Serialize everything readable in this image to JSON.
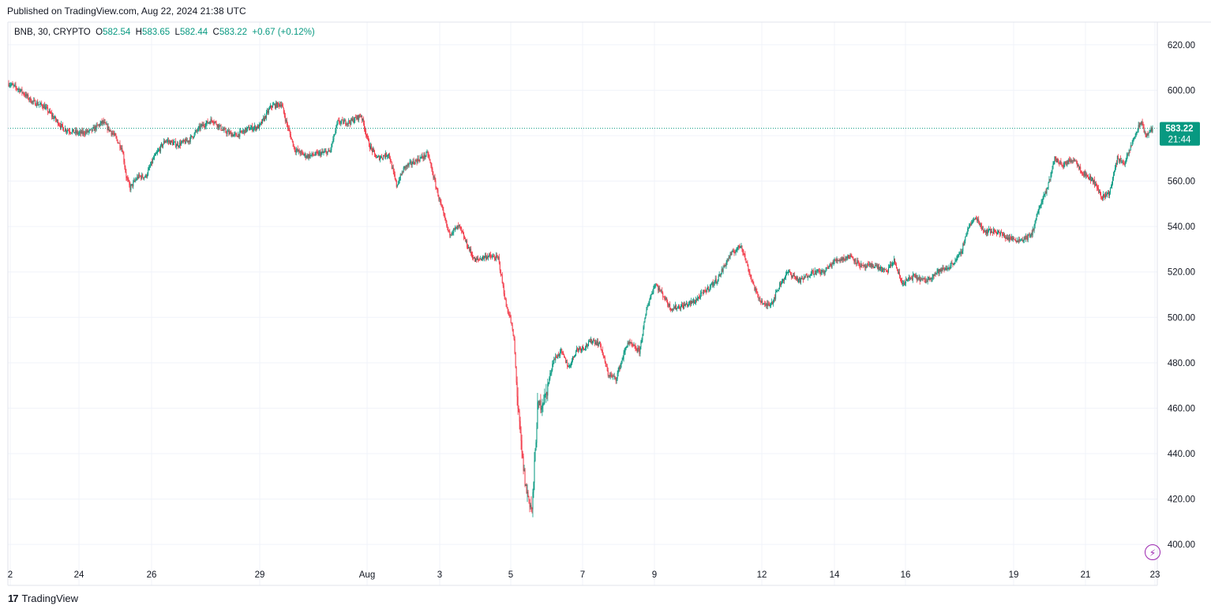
{
  "header": {
    "published": "Published on TradingView.com, Aug 22, 2024 21:38 UTC"
  },
  "legend": {
    "symbol": "BNB, 30, CRYPTO",
    "o_label": "O",
    "o_value": "582.54",
    "h_label": "H",
    "h_value": "583.65",
    "l_label": "L",
    "l_value": "582.44",
    "c_label": "C",
    "c_value": "583.22",
    "change": "+0.67 (+0.12%)"
  },
  "price_badge": {
    "price": "583.22",
    "countdown": "21:44"
  },
  "brand": {
    "logo": "17",
    "name": "TradingView"
  },
  "colors": {
    "up": "#089981",
    "down": "#f23645",
    "grid": "#f0f3fa",
    "current_badge": "#089981",
    "lightning": "#9c27b0"
  },
  "icons": {
    "lightning": "lightning-icon",
    "logo": "tradingview-logo-icon"
  },
  "chart_data": {
    "type": "candlestick",
    "ylim": [
      382,
      630
    ],
    "y_ticks": [
      "620.00",
      "600.00",
      "580.00",
      "560.00",
      "540.00",
      "520.00",
      "500.00",
      "480.00",
      "460.00",
      "440.00",
      "420.00",
      "400.00"
    ],
    "x_ticks": [
      "2",
      "24",
      "26",
      "29",
      "Aug",
      "3",
      "5",
      "7",
      "9",
      "12",
      "14",
      "16",
      "19",
      "21",
      "23"
    ],
    "current_price": 583.22,
    "path": [
      [
        0,
        603
      ],
      [
        15,
        600
      ],
      [
        30,
        595
      ],
      [
        45,
        593
      ],
      [
        60,
        587
      ],
      [
        70,
        583
      ],
      [
        90,
        581
      ],
      [
        105,
        582
      ],
      [
        120,
        586
      ],
      [
        135,
        580
      ],
      [
        145,
        574
      ],
      [
        150,
        562
      ],
      [
        155,
        557
      ],
      [
        165,
        562
      ],
      [
        175,
        562
      ],
      [
        185,
        570
      ],
      [
        200,
        578
      ],
      [
        215,
        576
      ],
      [
        230,
        578
      ],
      [
        245,
        584
      ],
      [
        260,
        587
      ],
      [
        275,
        582
      ],
      [
        290,
        580
      ],
      [
        305,
        583
      ],
      [
        320,
        584
      ],
      [
        335,
        593
      ],
      [
        348,
        594
      ],
      [
        355,
        585
      ],
      [
        365,
        574
      ],
      [
        380,
        571
      ],
      [
        395,
        572
      ],
      [
        410,
        573
      ],
      [
        420,
        586
      ],
      [
        435,
        586
      ],
      [
        450,
        589
      ],
      [
        460,
        576
      ],
      [
        470,
        570
      ],
      [
        485,
        572
      ],
      [
        495,
        558
      ],
      [
        505,
        566
      ],
      [
        515,
        568
      ],
      [
        525,
        570
      ],
      [
        535,
        572
      ],
      [
        545,
        558
      ],
      [
        555,
        545
      ],
      [
        562,
        537
      ],
      [
        575,
        540
      ],
      [
        585,
        532
      ],
      [
        595,
        525
      ],
      [
        610,
        527
      ],
      [
        625,
        526
      ],
      [
        635,
        505
      ],
      [
        640,
        500
      ],
      [
        645,
        490
      ],
      [
        650,
        460
      ],
      [
        655,
        440
      ],
      [
        660,
        425
      ],
      [
        668,
        415
      ],
      [
        675,
        460
      ],
      [
        685,
        465
      ],
      [
        695,
        481
      ],
      [
        705,
        485
      ],
      [
        715,
        478
      ],
      [
        725,
        486
      ],
      [
        735,
        487
      ],
      [
        745,
        490
      ],
      [
        755,
        488
      ],
      [
        765,
        475
      ],
      [
        775,
        473
      ],
      [
        790,
        489
      ],
      [
        805,
        485
      ],
      [
        815,
        505
      ],
      [
        825,
        515
      ],
      [
        835,
        510
      ],
      [
        845,
        504
      ],
      [
        860,
        505
      ],
      [
        875,
        507
      ],
      [
        890,
        512
      ],
      [
        905,
        517
      ],
      [
        920,
        527
      ],
      [
        935,
        532
      ],
      [
        945,
        520
      ],
      [
        955,
        510
      ],
      [
        965,
        505
      ],
      [
        975,
        507
      ],
      [
        985,
        515
      ],
      [
        995,
        520
      ],
      [
        1010,
        516
      ],
      [
        1025,
        520
      ],
      [
        1040,
        520
      ],
      [
        1055,
        525
      ],
      [
        1075,
        527
      ],
      [
        1090,
        522
      ],
      [
        1105,
        523
      ],
      [
        1120,
        520
      ],
      [
        1130,
        525
      ],
      [
        1140,
        515
      ],
      [
        1155,
        518
      ],
      [
        1170,
        516
      ],
      [
        1185,
        520
      ],
      [
        1200,
        522
      ],
      [
        1215,
        528
      ],
      [
        1225,
        540
      ],
      [
        1235,
        544
      ],
      [
        1245,
        538
      ],
      [
        1260,
        538
      ],
      [
        1275,
        535
      ],
      [
        1290,
        534
      ],
      [
        1305,
        536
      ],
      [
        1315,
        548
      ],
      [
        1325,
        556
      ],
      [
        1335,
        570
      ],
      [
        1345,
        567
      ],
      [
        1360,
        570
      ],
      [
        1370,
        564
      ],
      [
        1385,
        560
      ],
      [
        1395,
        553
      ],
      [
        1405,
        555
      ],
      [
        1415,
        570
      ],
      [
        1425,
        568
      ],
      [
        1435,
        578
      ],
      [
        1445,
        586
      ],
      [
        1452,
        580
      ],
      [
        1460,
        583.22
      ]
    ]
  }
}
